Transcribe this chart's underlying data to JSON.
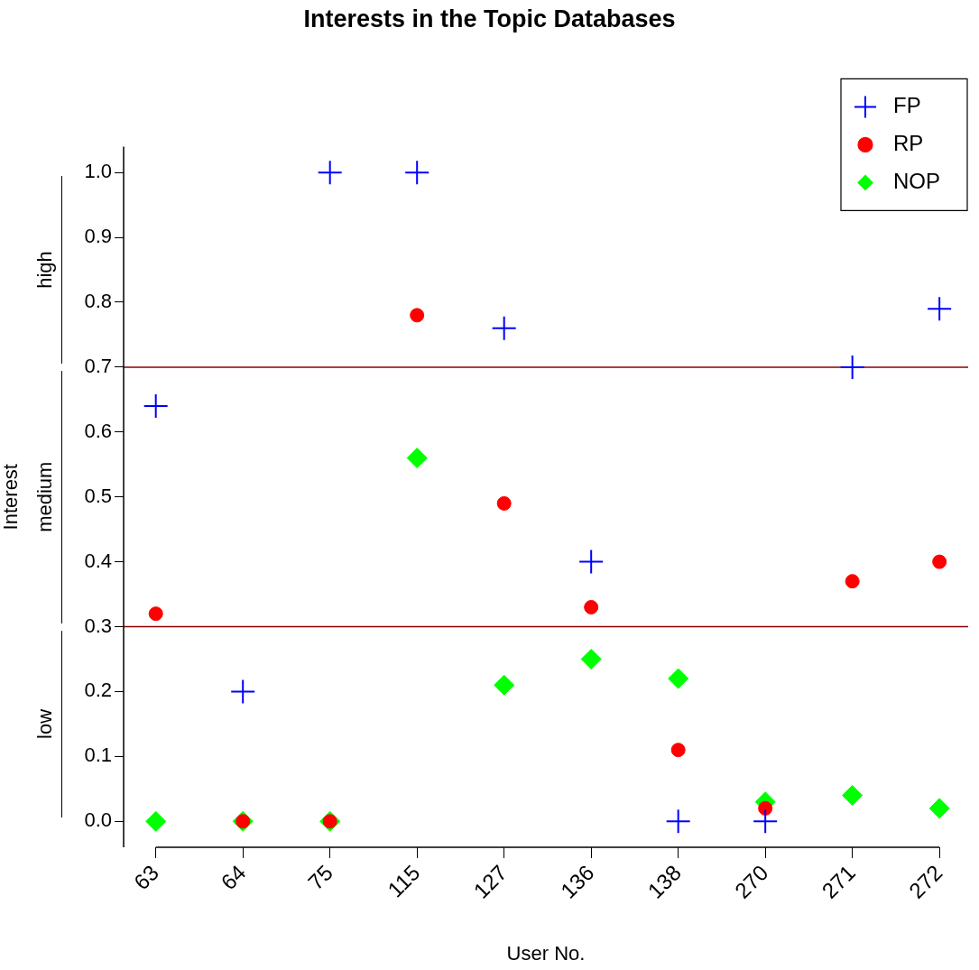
{
  "chart_data": {
    "type": "scatter",
    "title": "Interests in the Topic Databases",
    "xlabel": "User No.",
    "ylabel": "Interest",
    "categories": [
      "63",
      "64",
      "75",
      "115",
      "127",
      "136",
      "138",
      "270",
      "271",
      "272"
    ],
    "series": [
      {
        "name": "FP",
        "color": "#0000ff",
        "marker": "cross",
        "values": [
          0.64,
          0.2,
          1.0,
          1.0,
          0.76,
          0.4,
          0,
          0,
          0.7,
          0.79
        ]
      },
      {
        "name": "RP",
        "color": "#ff0000",
        "marker": "circle",
        "values": [
          0.32,
          0,
          0,
          0.78,
          0.49,
          0.33,
          0.11,
          0.02,
          0.37,
          0.4
        ]
      },
      {
        "name": "NOP",
        "color": "#00ff00",
        "marker": "diamond",
        "values": [
          0,
          0,
          0,
          0.56,
          0.21,
          0.25,
          0.22,
          0.03,
          0.04,
          0.02
        ]
      }
    ],
    "ylim": [
      -0.04,
      1.04
    ],
    "yticks": [
      {
        "value": 0,
        "label": "0.0"
      },
      {
        "value": 0.1,
        "label": "0.1"
      },
      {
        "value": 0.2,
        "label": "0.2"
      },
      {
        "value": 0.3,
        "label": "0.3"
      },
      {
        "value": 0.4,
        "label": "0.4"
      },
      {
        "value": 0.5,
        "label": "0.5"
      },
      {
        "value": 0.6,
        "label": "0.6"
      },
      {
        "value": 0.7,
        "label": "0.7"
      },
      {
        "value": 0.8,
        "label": "0.8"
      },
      {
        "value": 0.9,
        "label": "0.9"
      },
      {
        "value": 1,
        "label": "1.0"
      }
    ],
    "ref_lines": [
      {
        "axis": "y",
        "value": 0.3,
        "color": "#8b0000"
      },
      {
        "axis": "y",
        "value": 0.7,
        "color": "#8b0000"
      }
    ],
    "annotations": [
      "high",
      "medium",
      "low"
    ],
    "grid": false,
    "legend": "top right"
  }
}
